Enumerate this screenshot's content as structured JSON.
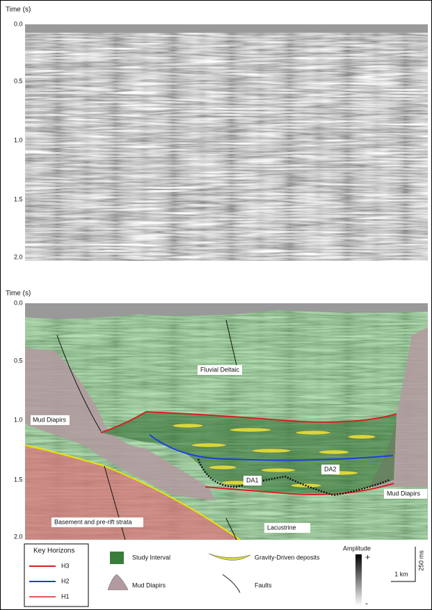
{
  "panels": [
    {
      "axis_label": "Time (s)",
      "ticks": [
        "0.0",
        "0.5",
        "1.0",
        "1.5",
        "2.0"
      ]
    },
    {
      "axis_label": "Time (s)",
      "ticks": [
        "0.0",
        "0.5",
        "1.0",
        "1.5",
        "2.0"
      ],
      "labels": {
        "fluvial": "Fluvial Deltaic",
        "diapir_left": "Mud Diapirs",
        "diapir_right": "Mud Diapirs",
        "da1": "DA1",
        "da2": "DA2",
        "basement": "Basement and pre-rift strata",
        "lacustrine": "Lacustrine"
      }
    }
  ],
  "legend": {
    "title": "Key Horizons",
    "horizons": [
      "H3",
      "H2",
      "H1"
    ],
    "study_interval": "Study Interval",
    "mud_diapirs": "Mud Diapirs",
    "gravity": "Gravity-Driven deposits",
    "faults": "Faults",
    "amplitude": "Amplitude",
    "plus": "+",
    "minus": "-",
    "scale_time": "250 ms",
    "scale_dist": "1 km"
  }
}
